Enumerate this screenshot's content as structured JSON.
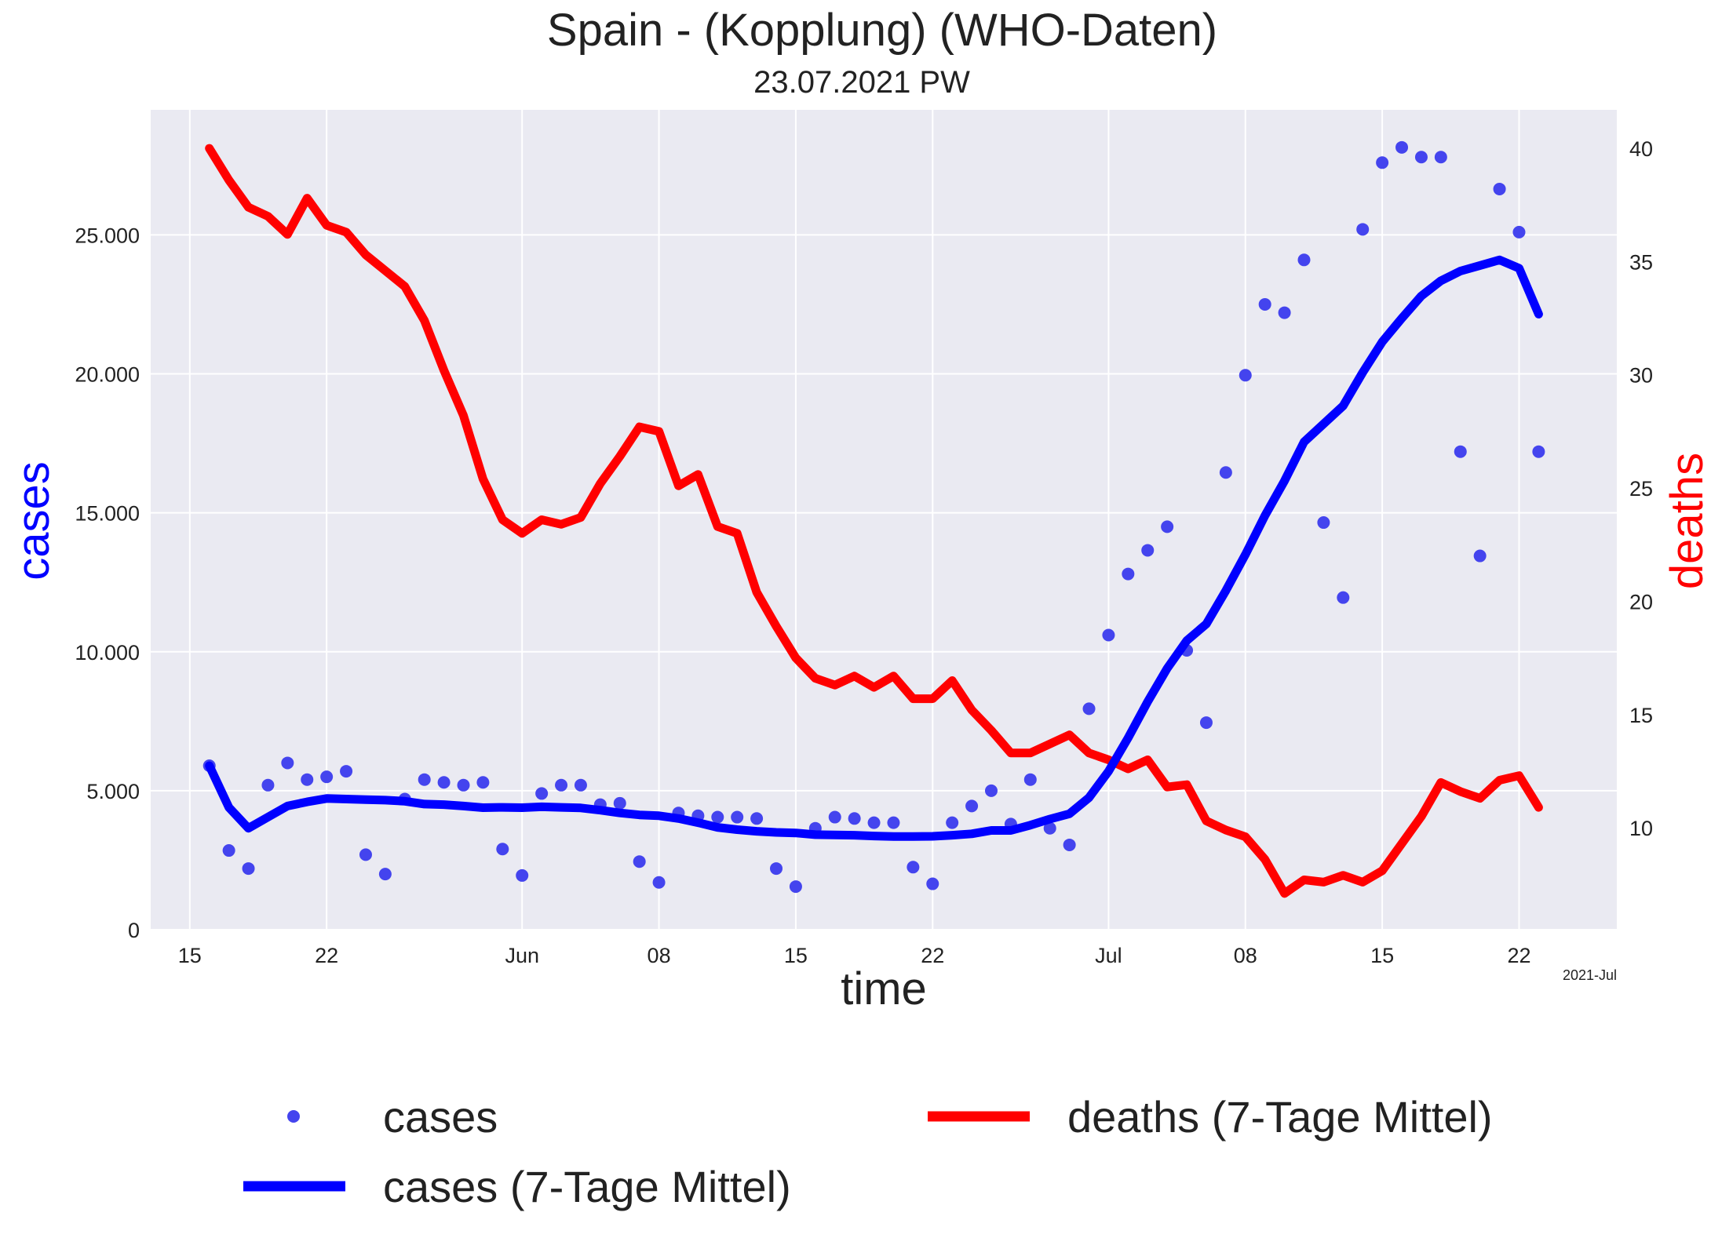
{
  "chart_data": {
    "type": "line",
    "title": "Spain - (Kopplung)  (WHO-Daten)",
    "subtitle": "23.07.2021 PW",
    "xlabel": "time",
    "ylabel_left": "cases",
    "ylabel_right": "deaths",
    "x_offset_label": "2021-Jul",
    "x_start": "2021-05-16",
    "x_end": "2021-07-23",
    "xlim": [
      "2021-05-13",
      "2021-07-27"
    ],
    "ylim_left": [
      0,
      29500
    ],
    "ylim_right": [
      5.5,
      41.7
    ],
    "x_ticks": [
      {
        "date": "2021-05-15",
        "label": "15"
      },
      {
        "date": "2021-05-22",
        "label": "22"
      },
      {
        "date": "2021-06-01",
        "label": "Jun"
      },
      {
        "date": "2021-06-08",
        "label": "08"
      },
      {
        "date": "2021-06-15",
        "label": "15"
      },
      {
        "date": "2021-06-22",
        "label": "22"
      },
      {
        "date": "2021-07-01",
        "label": "Jul"
      },
      {
        "date": "2021-07-08",
        "label": "08"
      },
      {
        "date": "2021-07-15",
        "label": "15"
      },
      {
        "date": "2021-07-22",
        "label": "22"
      }
    ],
    "y_ticks_left": [
      {
        "value": 0,
        "label": "0"
      },
      {
        "value": 5000,
        "label": "5.000"
      },
      {
        "value": 10000,
        "label": "10.000"
      },
      {
        "value": 15000,
        "label": "15.000"
      },
      {
        "value": 20000,
        "label": "20.000"
      },
      {
        "value": 25000,
        "label": "25.000"
      }
    ],
    "y_ticks_right": [
      {
        "value": 10,
        "label": "10"
      },
      {
        "value": 15,
        "label": "15"
      },
      {
        "value": 20,
        "label": "20"
      },
      {
        "value": 25,
        "label": "25"
      },
      {
        "value": 30,
        "label": "30"
      },
      {
        "value": 35,
        "label": "35"
      },
      {
        "value": 40,
        "label": "40"
      }
    ],
    "grid": true,
    "legend_position": "below",
    "series": [
      {
        "name": "cases",
        "kind": "scatter",
        "axis": "left",
        "color": "#4444ee",
        "values": [
          5900,
          2850,
          2200,
          5200,
          6000,
          5400,
          5500,
          5700,
          2700,
          2000,
          4700,
          5400,
          5300,
          5200,
          5300,
          2900,
          1950,
          4900,
          5200,
          5200,
          4500,
          4550,
          2450,
          1700,
          4200,
          4100,
          4050,
          4050,
          4000,
          2200,
          1550,
          3650,
          4050,
          4000,
          3850,
          3850,
          2250,
          1650,
          3850,
          4450,
          5000,
          3800,
          5400,
          3650,
          3050,
          7950,
          10600,
          12800,
          13650,
          14500,
          10050,
          7450,
          16450,
          19950,
          22500,
          22200,
          24100,
          14650,
          11950,
          25200,
          27600,
          28150,
          27800,
          27800,
          17200,
          13450,
          26650,
          25100,
          17200
        ]
      },
      {
        "name": "cases (7-Tage Mittel)",
        "kind": "line",
        "axis": "left",
        "color": "#0000ff",
        "values": [
          5900,
          4400,
          3650,
          4050,
          4450,
          4600,
          4720,
          4700,
          4680,
          4660,
          4620,
          4520,
          4500,
          4450,
          4390,
          4400,
          4390,
          4420,
          4400,
          4380,
          4300,
          4200,
          4130,
          4100,
          4000,
          3850,
          3680,
          3600,
          3540,
          3500,
          3480,
          3420,
          3410,
          3400,
          3370,
          3350,
          3350,
          3360,
          3400,
          3450,
          3570,
          3570,
          3760,
          3980,
          4170,
          4750,
          5700,
          6900,
          8200,
          9400,
          10400,
          11000,
          12200,
          13500,
          14900,
          16150,
          17550,
          18200,
          18850,
          20050,
          21150,
          22000,
          22800,
          23350,
          23700,
          23900,
          24100,
          23800,
          22150
        ]
      },
      {
        "name": "deaths (7-Tage Mittel)",
        "kind": "line",
        "axis": "right",
        "color": "#ff0000",
        "values": [
          40.0,
          38.6,
          37.4,
          37.0,
          36.2,
          37.8,
          36.6,
          36.3,
          35.3,
          34.6,
          33.9,
          32.4,
          30.2,
          28.2,
          25.4,
          23.6,
          23.0,
          23.6,
          23.4,
          23.7,
          25.2,
          26.4,
          27.7,
          27.5,
          25.1,
          25.6,
          23.3,
          23.0,
          20.4,
          18.9,
          17.5,
          16.6,
          16.3,
          16.7,
          16.2,
          16.7,
          15.7,
          15.7,
          16.5,
          15.2,
          14.3,
          13.3,
          13.3,
          13.7,
          14.1,
          13.3,
          13.0,
          12.6,
          13.0,
          11.8,
          11.9,
          10.3,
          9.9,
          9.6,
          8.6,
          7.1,
          7.7,
          7.6,
          7.9,
          7.6,
          8.1,
          9.3,
          10.5,
          12.0,
          11.6,
          11.3,
          12.1,
          12.3,
          10.9
        ]
      }
    ]
  }
}
